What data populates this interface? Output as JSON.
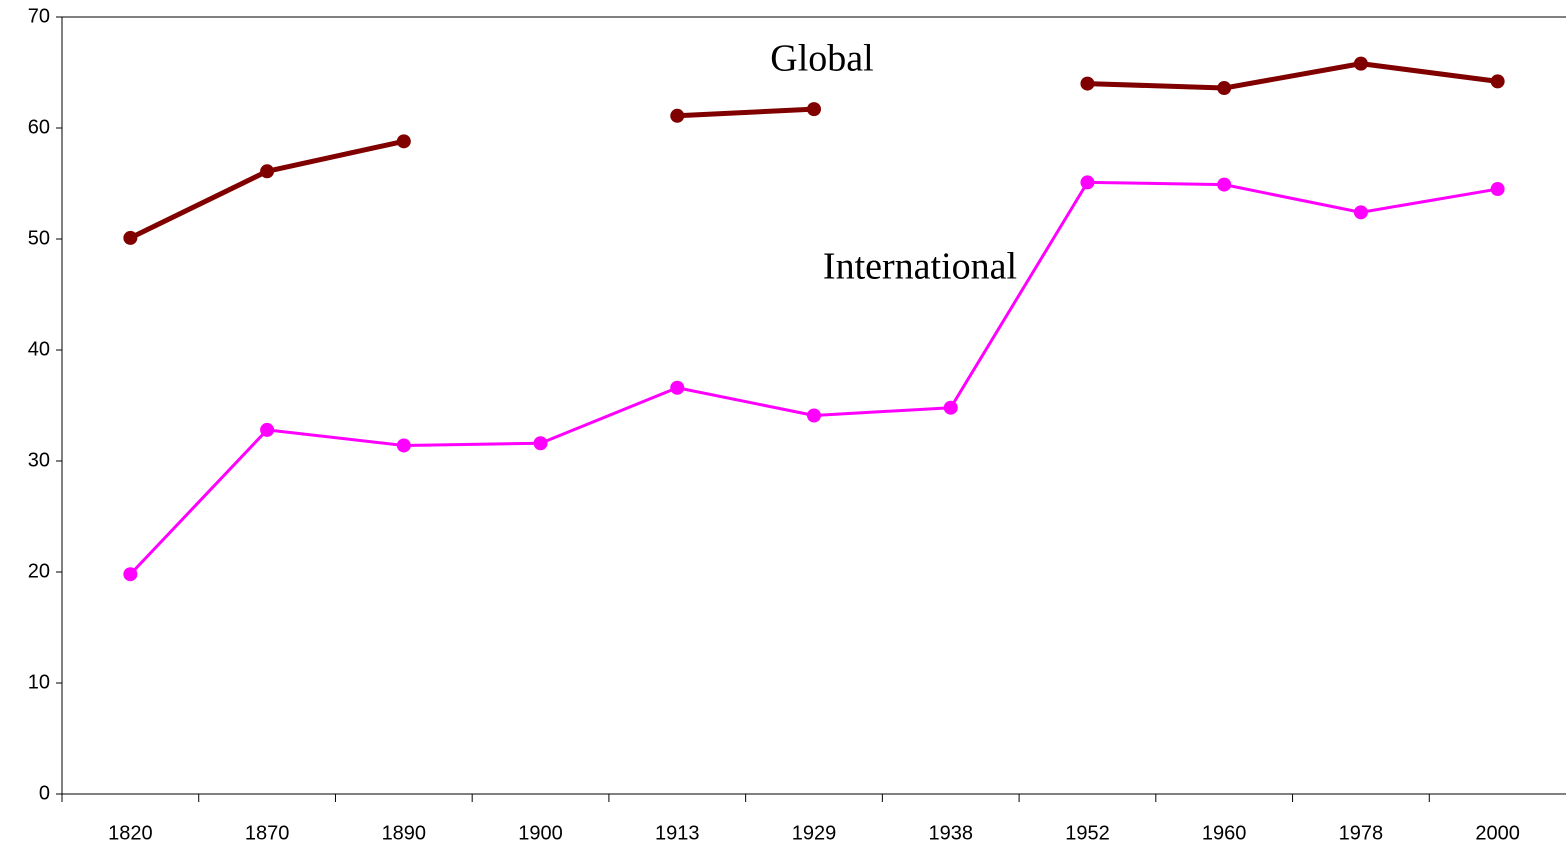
{
  "chart_data": {
    "type": "line",
    "categories": [
      "1820",
      "1870",
      "1890",
      "1900",
      "1913",
      "1929",
      "1938",
      "1952",
      "1960",
      "1978",
      "2000"
    ],
    "series": [
      {
        "name": "Global",
        "color": "#800000",
        "values": [
          50.1,
          56.1,
          58.8,
          null,
          61.1,
          61.7,
          null,
          64.0,
          63.6,
          65.8,
          64.2
        ]
      },
      {
        "name": "International",
        "color": "#ff00ff",
        "values": [
          19.8,
          32.8,
          31.4,
          31.6,
          36.6,
          34.1,
          34.8,
          55.1,
          54.9,
          52.4,
          54.5
        ]
      }
    ],
    "ylim": [
      0,
      70
    ],
    "yticks": [
      0,
      10,
      20,
      30,
      40,
      50,
      60,
      70
    ]
  }
}
